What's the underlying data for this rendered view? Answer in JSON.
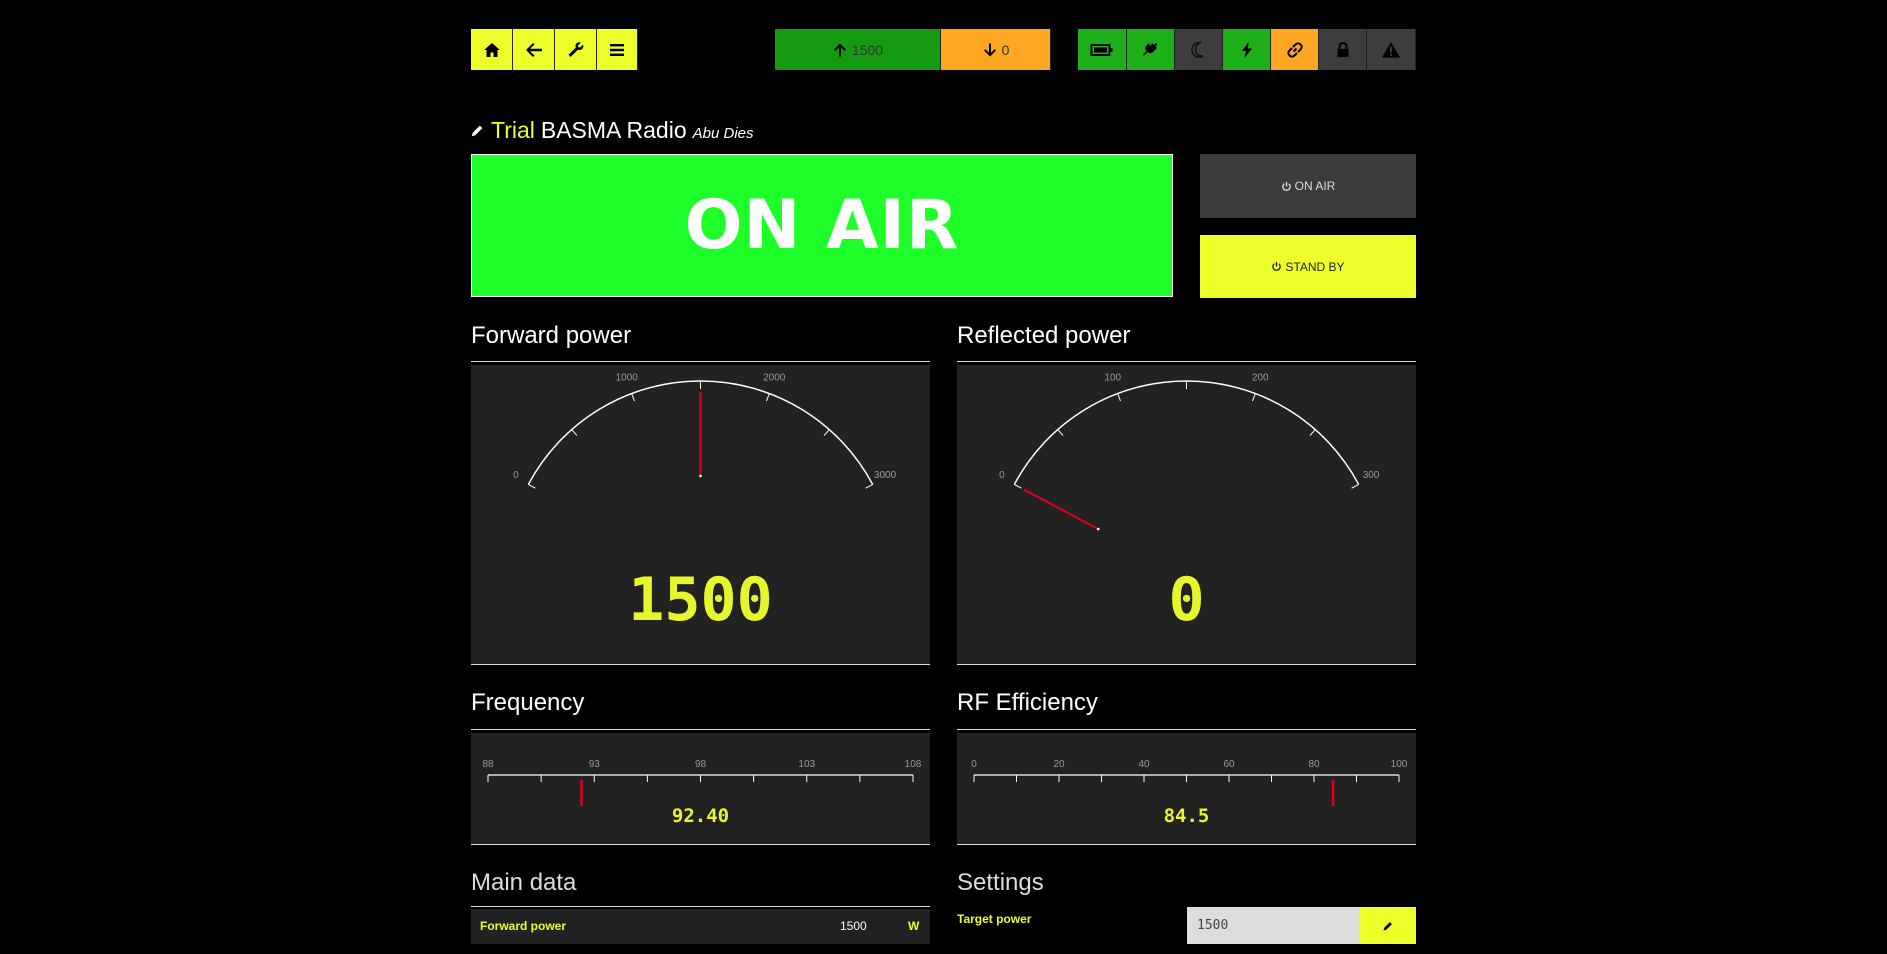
{
  "toolbar": {
    "nav": [
      "home-icon",
      "arrow-left-icon",
      "wrench-icon",
      "menu-icon"
    ],
    "counter_up": "1500",
    "counter_down": "0",
    "status_icons": [
      "battery-icon",
      "plug-icon",
      "moon-icon",
      "bolt-icon",
      "link-icon",
      "lock-icon",
      "warning-icon"
    ]
  },
  "station": {
    "badge": "Trial",
    "name": "BASMA Radio",
    "location": "Abu Dies"
  },
  "banner": {
    "status": "ON AIR",
    "color": "#1eff2a"
  },
  "controls": {
    "on_air_label": "ON AIR",
    "stand_by_label": "STAND BY"
  },
  "gauges": {
    "forward": {
      "title": "Forward power",
      "value": 1500,
      "display": "1500",
      "min": 0,
      "max": 3000,
      "ticks": [
        "0",
        "1000",
        "2000",
        "3000"
      ]
    },
    "reflected": {
      "title": "Reflected power",
      "value": 0,
      "display": "0",
      "min": 0,
      "max": 300,
      "ticks": [
        "0",
        "100",
        "200",
        "300"
      ]
    }
  },
  "linear": {
    "frequency": {
      "title": "Frequency",
      "value": 92.4,
      "display": "92.40",
      "min": 88,
      "max": 108,
      "ticks": [
        "88",
        "93",
        "98",
        "103",
        "108"
      ]
    },
    "efficiency": {
      "title": "RF Efficiency",
      "value": 84.5,
      "display": "84.5",
      "min": 0,
      "max": 100,
      "ticks": [
        "0",
        "20",
        "40",
        "60",
        "80",
        "100"
      ]
    }
  },
  "main_data": {
    "title": "Main data",
    "rows": [
      {
        "label": "Forward power",
        "value": "1500",
        "unit": "W"
      }
    ]
  },
  "settings": {
    "title": "Settings",
    "target_label": "Target power",
    "target_value": "1500"
  },
  "colors": {
    "accent": "#ecff2b",
    "needle": "#e0001a",
    "panel": "#222222"
  }
}
